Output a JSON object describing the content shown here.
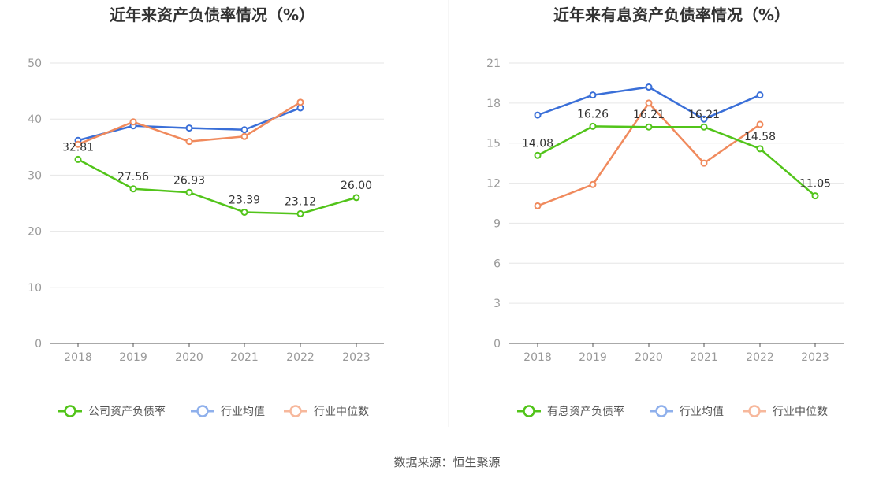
{
  "source": "数据来源：恒生聚源",
  "chart_data": [
    {
      "type": "line",
      "title": "近年来资产负债率情况（%）",
      "categories": [
        "2018",
        "2019",
        "2020",
        "2021",
        "2022",
        "2023"
      ],
      "ylim": [
        0,
        50
      ],
      "yticks": [
        0,
        10,
        20,
        30,
        40,
        50
      ],
      "grid": true,
      "legend_position": "bottom",
      "series": [
        {
          "name": "公司资产负债率",
          "color": "#52c41a",
          "values": [
            32.81,
            27.56,
            26.93,
            23.39,
            23.12,
            26.0
          ],
          "labels": [
            "32.81",
            "27.56",
            "26.93",
            "23.39",
            "23.12",
            "26.00"
          ]
        },
        {
          "name": "行业均值",
          "color": "#3a6fd8",
          "values": [
            36.2,
            38.8,
            38.4,
            38.1,
            42.0,
            null
          ]
        },
        {
          "name": "行业中位数",
          "color": "#f08a5d",
          "values": [
            35.5,
            39.5,
            36.0,
            36.9,
            43.0,
            null
          ]
        }
      ]
    },
    {
      "type": "line",
      "title": "近年来有息资产负债率情况（%）",
      "categories": [
        "2018",
        "2019",
        "2020",
        "2021",
        "2022",
        "2023"
      ],
      "ylim": [
        0,
        21
      ],
      "yticks": [
        0,
        3,
        6,
        9,
        12,
        15,
        18,
        21
      ],
      "grid": true,
      "legend_position": "bottom",
      "series": [
        {
          "name": "有息资产负债率",
          "color": "#52c41a",
          "values": [
            14.08,
            16.26,
            16.21,
            16.21,
            14.58,
            11.05
          ],
          "labels": [
            "14.08",
            "16.26",
            "16.21",
            "16.21",
            "14.58",
            "11.05"
          ]
        },
        {
          "name": "行业均值",
          "color": "#3a6fd8",
          "values": [
            17.1,
            18.6,
            19.2,
            16.8,
            18.6,
            null
          ]
        },
        {
          "name": "行业中位数",
          "color": "#f08a5d",
          "values": [
            10.3,
            11.9,
            18.0,
            13.5,
            16.4,
            null
          ]
        }
      ]
    }
  ]
}
